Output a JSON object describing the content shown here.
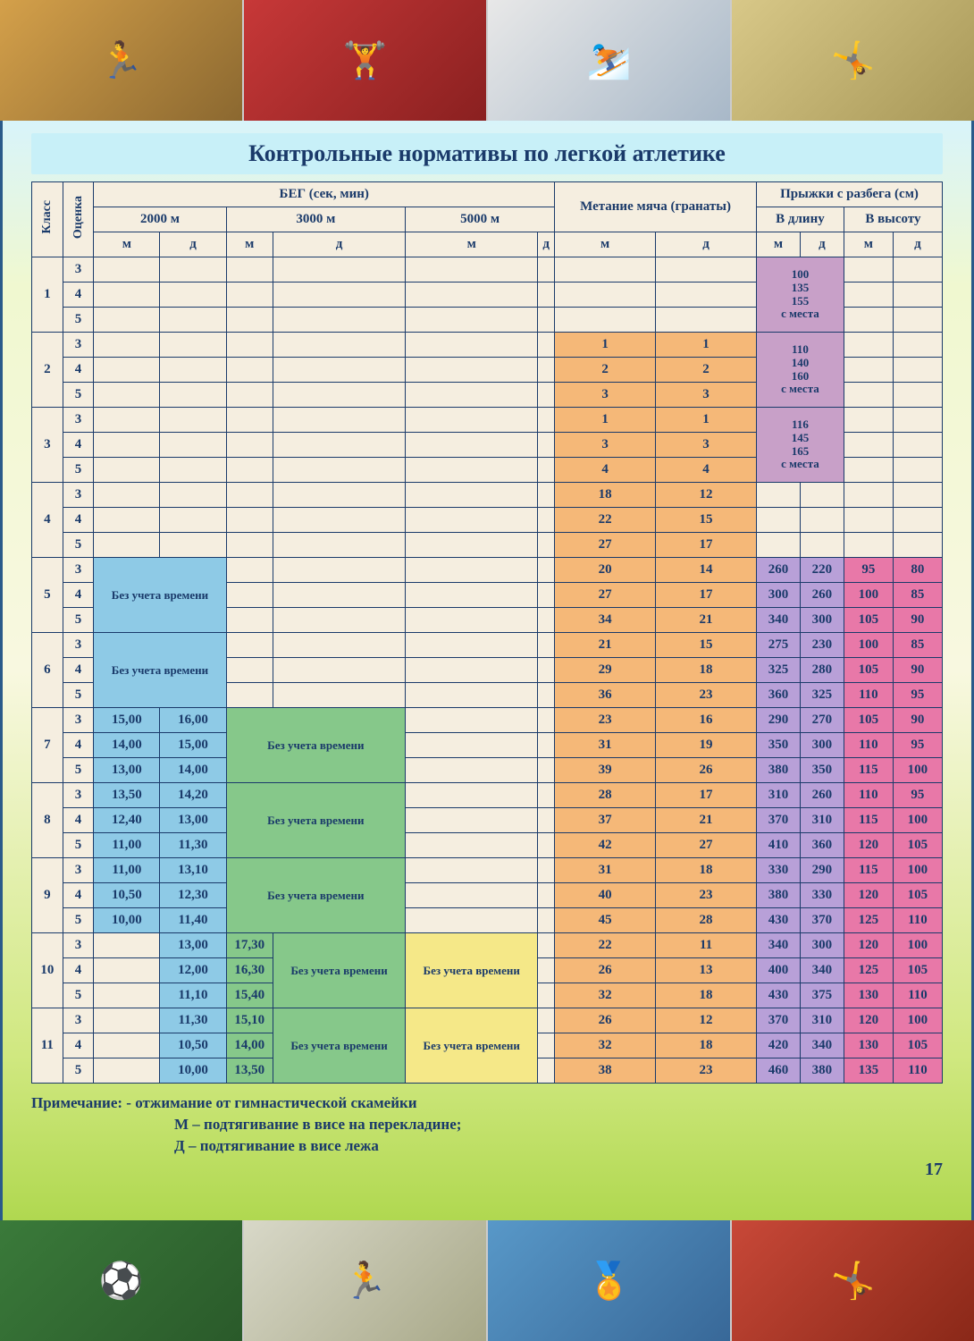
{
  "title": "Контрольные нормативы по легкой атлетике",
  "page_number": "17",
  "columns": {
    "klass": "Класс",
    "ocenka": "Оценка",
    "run_group": "БЕГ (сек, мин)",
    "run_2000": "2000 м",
    "run_3000": "3000 м",
    "run_5000": "5000 м",
    "throw": "Метание мяча (гранаты)",
    "jump_group": "Прыжки с разбега (см)",
    "jump_long": "В длину",
    "jump_high": "В высоту",
    "m": "м",
    "d": "д"
  },
  "merge_labels": {
    "bez_ucheta": "Без учета времени",
    "s_mesta": "с места",
    "long1": [
      "100",
      "135",
      "155"
    ],
    "long2": [
      "110",
      "140",
      "160"
    ],
    "long3": [
      "116",
      "145",
      "165"
    ]
  },
  "footer": {
    "line1": "Примечание: - отжимание от гимнастической скамейки",
    "line2": "М – подтягивание в висе на перекладине;",
    "line3": "Д – подтягивание в висе лежа"
  },
  "rows": [
    {
      "k": "1",
      "g": "3",
      "r2m": "",
      "r2d": "",
      "r3m": "",
      "r3d": "",
      "r5m": "",
      "r5d": "",
      "tm": "",
      "td": "",
      "lm": "",
      "ld": "",
      "hm": "",
      "hd": ""
    },
    {
      "k": "",
      "g": "4",
      "r2m": "",
      "r2d": "",
      "r3m": "",
      "r3d": "",
      "r5m": "",
      "r5d": "",
      "tm": "",
      "td": "",
      "lm": "",
      "ld": "",
      "hm": "",
      "hd": ""
    },
    {
      "k": "",
      "g": "5",
      "r2m": "",
      "r2d": "",
      "r3m": "",
      "r3d": "",
      "r5m": "",
      "r5d": "",
      "tm": "",
      "td": "",
      "lm": "",
      "ld": "",
      "hm": "",
      "hd": ""
    },
    {
      "k": "2",
      "g": "3",
      "r2m": "",
      "r2d": "",
      "r3m": "",
      "r3d": "",
      "r5m": "",
      "r5d": "",
      "tm": "1",
      "td": "1",
      "lm": "",
      "ld": "",
      "hm": "",
      "hd": ""
    },
    {
      "k": "",
      "g": "4",
      "r2m": "",
      "r2d": "",
      "r3m": "",
      "r3d": "",
      "r5m": "",
      "r5d": "",
      "tm": "2",
      "td": "2",
      "lm": "",
      "ld": "",
      "hm": "",
      "hd": ""
    },
    {
      "k": "",
      "g": "5",
      "r2m": "",
      "r2d": "",
      "r3m": "",
      "r3d": "",
      "r5m": "",
      "r5d": "",
      "tm": "3",
      "td": "3",
      "lm": "",
      "ld": "",
      "hm": "",
      "hd": ""
    },
    {
      "k": "3",
      "g": "3",
      "r2m": "",
      "r2d": "",
      "r3m": "",
      "r3d": "",
      "r5m": "",
      "r5d": "",
      "tm": "1",
      "td": "1",
      "lm": "",
      "ld": "",
      "hm": "",
      "hd": ""
    },
    {
      "k": "",
      "g": "4",
      "r2m": "",
      "r2d": "",
      "r3m": "",
      "r3d": "",
      "r5m": "",
      "r5d": "",
      "tm": "3",
      "td": "3",
      "lm": "",
      "ld": "",
      "hm": "",
      "hd": ""
    },
    {
      "k": "",
      "g": "5",
      "r2m": "",
      "r2d": "",
      "r3m": "",
      "r3d": "",
      "r5m": "",
      "r5d": "",
      "tm": "4",
      "td": "4",
      "lm": "",
      "ld": "",
      "hm": "",
      "hd": ""
    },
    {
      "k": "4",
      "g": "3",
      "r2m": "",
      "r2d": "",
      "r3m": "",
      "r3d": "",
      "r5m": "",
      "r5d": "",
      "tm": "18",
      "td": "12",
      "lm": "",
      "ld": "",
      "hm": "",
      "hd": ""
    },
    {
      "k": "",
      "g": "4",
      "r2m": "",
      "r2d": "",
      "r3m": "",
      "r3d": "",
      "r5m": "",
      "r5d": "",
      "tm": "22",
      "td": "15",
      "lm": "",
      "ld": "",
      "hm": "",
      "hd": ""
    },
    {
      "k": "",
      "g": "5",
      "r2m": "",
      "r2d": "",
      "r3m": "",
      "r3d": "",
      "r5m": "",
      "r5d": "",
      "tm": "27",
      "td": "17",
      "lm": "",
      "ld": "",
      "hm": "",
      "hd": ""
    },
    {
      "k": "5",
      "g": "3",
      "tm": "20",
      "td": "14",
      "lm": "260",
      "ld": "220",
      "hm": "95",
      "hd": "80"
    },
    {
      "k": "",
      "g": "4",
      "tm": "27",
      "td": "17",
      "lm": "300",
      "ld": "260",
      "hm": "100",
      "hd": "85"
    },
    {
      "k": "",
      "g": "5",
      "tm": "34",
      "td": "21",
      "lm": "340",
      "ld": "300",
      "hm": "105",
      "hd": "90"
    },
    {
      "k": "6",
      "g": "3",
      "tm": "21",
      "td": "15",
      "lm": "275",
      "ld": "230",
      "hm": "100",
      "hd": "85"
    },
    {
      "k": "",
      "g": "4",
      "tm": "29",
      "td": "18",
      "lm": "325",
      "ld": "280",
      "hm": "105",
      "hd": "90"
    },
    {
      "k": "",
      "g": "5",
      "tm": "36",
      "td": "23",
      "lm": "360",
      "ld": "325",
      "hm": "110",
      "hd": "95"
    },
    {
      "k": "7",
      "g": "3",
      "r2m": "15,00",
      "r2d": "16,00",
      "tm": "23",
      "td": "16",
      "lm": "290",
      "ld": "270",
      "hm": "105",
      "hd": "90"
    },
    {
      "k": "",
      "g": "4",
      "r2m": "14,00",
      "r2d": "15,00",
      "tm": "31",
      "td": "19",
      "lm": "350",
      "ld": "300",
      "hm": "110",
      "hd": "95"
    },
    {
      "k": "",
      "g": "5",
      "r2m": "13,00",
      "r2d": "14,00",
      "tm": "39",
      "td": "26",
      "lm": "380",
      "ld": "350",
      "hm": "115",
      "hd": "100"
    },
    {
      "k": "8",
      "g": "3",
      "r2m": "13,50",
      "r2d": "14,20",
      "tm": "28",
      "td": "17",
      "lm": "310",
      "ld": "260",
      "hm": "110",
      "hd": "95"
    },
    {
      "k": "",
      "g": "4",
      "r2m": "12,40",
      "r2d": "13,00",
      "tm": "37",
      "td": "21",
      "lm": "370",
      "ld": "310",
      "hm": "115",
      "hd": "100"
    },
    {
      "k": "",
      "g": "5",
      "r2m": "11,00",
      "r2d": "11,30",
      "tm": "42",
      "td": "27",
      "lm": "410",
      "ld": "360",
      "hm": "120",
      "hd": "105"
    },
    {
      "k": "9",
      "g": "3",
      "r2m": "11,00",
      "r2d": "13,10",
      "tm": "31",
      "td": "18",
      "lm": "330",
      "ld": "290",
      "hm": "115",
      "hd": "100"
    },
    {
      "k": "",
      "g": "4",
      "r2m": "10,50",
      "r2d": "12,30",
      "tm": "40",
      "td": "23",
      "lm": "380",
      "ld": "330",
      "hm": "120",
      "hd": "105"
    },
    {
      "k": "",
      "g": "5",
      "r2m": "10,00",
      "r2d": "11,40",
      "tm": "45",
      "td": "28",
      "lm": "430",
      "ld": "370",
      "hm": "125",
      "hd": "110"
    },
    {
      "k": "10",
      "g": "3",
      "r2m": "",
      "r2d": "13,00",
      "r3m": "17,30",
      "tm": "22",
      "td": "11",
      "lm": "340",
      "ld": "300",
      "hm": "120",
      "hd": "100"
    },
    {
      "k": "",
      "g": "4",
      "r2m": "",
      "r2d": "12,00",
      "r3m": "16,30",
      "tm": "26",
      "td": "13",
      "lm": "400",
      "ld": "340",
      "hm": "125",
      "hd": "105"
    },
    {
      "k": "",
      "g": "5",
      "r2m": "",
      "r2d": "11,10",
      "r3m": "15,40",
      "tm": "32",
      "td": "18",
      "lm": "430",
      "ld": "375",
      "hm": "130",
      "hd": "110"
    },
    {
      "k": "11",
      "g": "3",
      "r2m": "",
      "r2d": "11,30",
      "r3m": "15,10",
      "tm": "26",
      "td": "12",
      "lm": "370",
      "ld": "310",
      "hm": "120",
      "hd": "100"
    },
    {
      "k": "",
      "g": "4",
      "r2m": "",
      "r2d": "10,50",
      "r3m": "14,00",
      "tm": "32",
      "td": "18",
      "lm": "420",
      "ld": "340",
      "hm": "130",
      "hd": "105"
    },
    {
      "k": "",
      "g": "5",
      "r2m": "",
      "r2d": "10,00",
      "r3m": "13,50",
      "tm": "38",
      "td": "23",
      "lm": "460",
      "ld": "380",
      "hm": "135",
      "hd": "110"
    }
  ],
  "colors": {
    "blue": "#8ecae6",
    "green": "#86c88a",
    "yellow": "#f5e888",
    "orange": "#f5b878",
    "purple": "#b8a0d8",
    "purple2": "#c8a0c8",
    "pink": "#e878a8",
    "border": "#1a3a6a",
    "text": "#1a3a6a"
  }
}
